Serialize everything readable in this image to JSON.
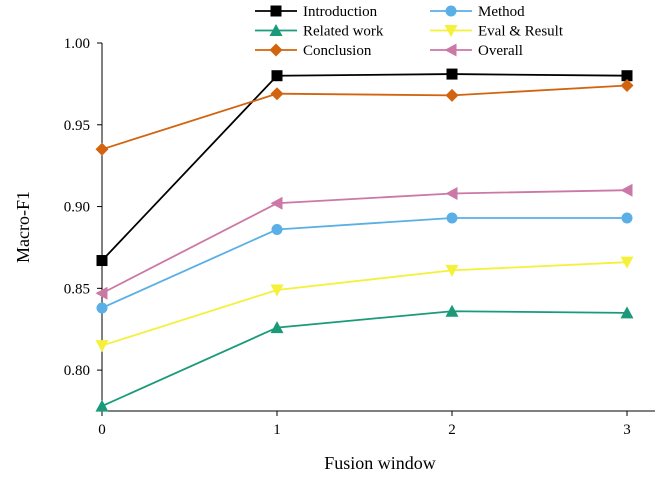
{
  "chart_data": {
    "type": "line",
    "xlabel": "Fusion window",
    "ylabel": "Macro-F1",
    "x": [
      0,
      1,
      2,
      3
    ],
    "xlim": [
      0,
      3
    ],
    "ylim": [
      0.775,
      1.0
    ],
    "x_ticks": [
      "0",
      "1",
      "2",
      "3"
    ],
    "y_ticks": [
      "0.80",
      "0.85",
      "0.90",
      "0.95",
      "1.00"
    ],
    "grid": false,
    "legend_position": "top",
    "series": [
      {
        "name": "Introduction",
        "color": "#000000",
        "marker": "square",
        "values": [
          0.867,
          0.98,
          0.981,
          0.98
        ]
      },
      {
        "name": "Method",
        "color": "#5aafe6",
        "marker": "circle",
        "values": [
          0.838,
          0.886,
          0.893,
          0.893
        ]
      },
      {
        "name": "Related work",
        "color": "#1a9a78",
        "marker": "triangle-up",
        "values": [
          0.778,
          0.826,
          0.836,
          0.835
        ]
      },
      {
        "name": "Eval & Result",
        "color": "#f5f03a",
        "marker": "triangle-down",
        "values": [
          0.815,
          0.849,
          0.861,
          0.866
        ]
      },
      {
        "name": "Conclusion",
        "color": "#d2640f",
        "marker": "diamond",
        "values": [
          0.935,
          0.969,
          0.968,
          0.974
        ]
      },
      {
        "name": "Overall",
        "color": "#cc78a6",
        "marker": "triangle-left",
        "values": [
          0.847,
          0.902,
          0.908,
          0.91
        ]
      }
    ]
  }
}
